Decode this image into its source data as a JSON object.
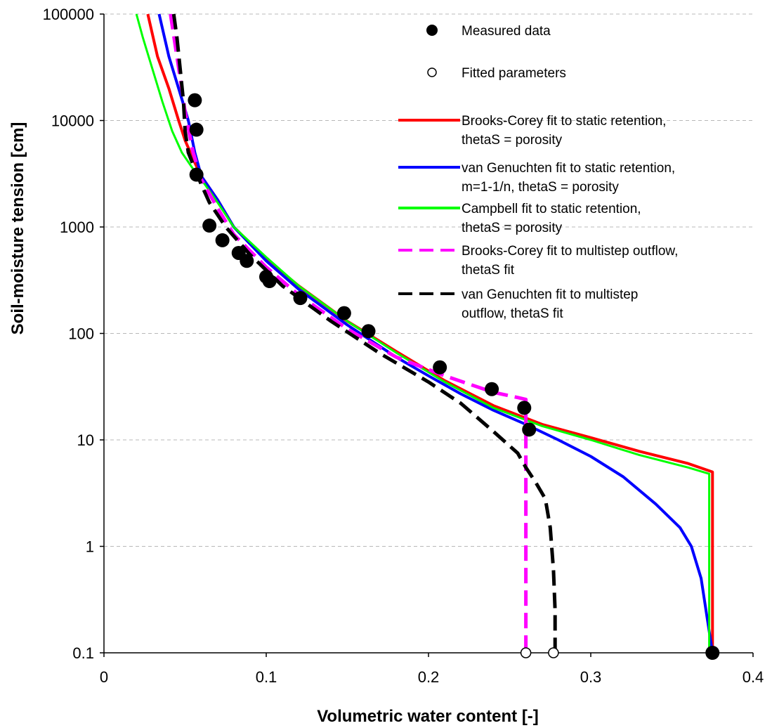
{
  "chart_data": {
    "type": "line",
    "title": "",
    "xlabel": "Volumetric water content [-]",
    "ylabel": "Soil-moisture tension [cm]",
    "xlim": [
      0,
      0.4
    ],
    "ylim": [
      0.1,
      100000
    ],
    "yscale": "log",
    "grid": "horizontal dashed",
    "legend_position": "top-right",
    "x_ticks": [
      "0",
      "0.1",
      "0.2",
      "0.3",
      "0.4"
    ],
    "y_ticks": [
      "0.1",
      "1",
      "10",
      "100",
      "1000",
      "10000",
      "100000"
    ],
    "x_tick_values": [
      0,
      0.1,
      0.2,
      0.3,
      0.4
    ],
    "y_tick_values": [
      0.1,
      1,
      10,
      100,
      1000,
      10000,
      100000
    ],
    "legend": [
      {
        "label_lines": [
          "Measured data"
        ],
        "marker": "filled-circle",
        "color": "#000000"
      },
      {
        "label_lines": [
          "Fitted parameters"
        ],
        "marker": "open-circle",
        "color": "#000000"
      },
      {
        "label_lines": [
          "Brooks-Corey fit to static retention,",
          "thetaS = porosity"
        ],
        "line": "solid",
        "color": "#ff0000"
      },
      {
        "label_lines": [
          "van Genuchten fit to static retention,",
          "m=1-1/n, thetaS = porosity"
        ],
        "line": "solid",
        "color": "#0000ff"
      },
      {
        "label_lines": [
          "Campbell fit to static retention,",
          "thetaS = porosity"
        ],
        "line": "solid",
        "color": "#00ff00"
      },
      {
        "label_lines": [
          "Brooks-Corey fit to multistep outflow,",
          "thetaS fit"
        ],
        "line": "dashed",
        "color": "#ff00ff"
      },
      {
        "label_lines": [
          "van Genuchten fit to multistep",
          "outflow, thetaS fit"
        ],
        "line": "dashed",
        "color": "#000000"
      }
    ],
    "series": [
      {
        "name": "Brooks-Corey fit to static retention, thetaS = porosity",
        "color": "#ff0000",
        "style": "solid",
        "width": 4,
        "points": [
          [
            0.027,
            100000
          ],
          [
            0.033,
            40000
          ],
          [
            0.04,
            20000
          ],
          [
            0.046,
            10000
          ],
          [
            0.05,
            6500
          ],
          [
            0.056,
            4000
          ],
          [
            0.06,
            3000
          ],
          [
            0.07,
            1800
          ],
          [
            0.08,
            1000
          ],
          [
            0.1,
            500
          ],
          [
            0.12,
            280
          ],
          [
            0.15,
            130
          ],
          [
            0.18,
            68
          ],
          [
            0.21,
            36
          ],
          [
            0.24,
            21
          ],
          [
            0.27,
            14
          ],
          [
            0.3,
            10.5
          ],
          [
            0.33,
            7.8
          ],
          [
            0.36,
            6
          ],
          [
            0.375,
            5
          ],
          [
            0.375,
            0.1
          ]
        ]
      },
      {
        "name": "van Genuchten fit to static retention, m=1-1/n, thetaS = porosity",
        "color": "#0000ff",
        "style": "solid",
        "width": 4,
        "points": [
          [
            0.034,
            100000
          ],
          [
            0.04,
            40000
          ],
          [
            0.046,
            20000
          ],
          [
            0.052,
            10000
          ],
          [
            0.056,
            5000
          ],
          [
            0.06,
            3000
          ],
          [
            0.07,
            1800
          ],
          [
            0.08,
            1000
          ],
          [
            0.1,
            480
          ],
          [
            0.12,
            260
          ],
          [
            0.15,
            120
          ],
          [
            0.18,
            60
          ],
          [
            0.2,
            40
          ],
          [
            0.22,
            27
          ],
          [
            0.24,
            19
          ],
          [
            0.26,
            14
          ],
          [
            0.28,
            10
          ],
          [
            0.3,
            7
          ],
          [
            0.32,
            4.5
          ],
          [
            0.34,
            2.5
          ],
          [
            0.355,
            1.5
          ],
          [
            0.362,
            1
          ],
          [
            0.368,
            0.5
          ],
          [
            0.372,
            0.2
          ],
          [
            0.375,
            0.1
          ]
        ]
      },
      {
        "name": "Campbell fit to static retention, thetaS = porosity",
        "color": "#00ff00",
        "style": "solid",
        "width": 3,
        "points": [
          [
            0.02,
            100000
          ],
          [
            0.024,
            60000
          ],
          [
            0.03,
            30000
          ],
          [
            0.036,
            15000
          ],
          [
            0.042,
            8000
          ],
          [
            0.048,
            5000
          ],
          [
            0.055,
            3500
          ],
          [
            0.06,
            2800
          ],
          [
            0.07,
            1700
          ],
          [
            0.08,
            1000
          ],
          [
            0.1,
            520
          ],
          [
            0.12,
            280
          ],
          [
            0.15,
            130
          ],
          [
            0.18,
            66
          ],
          [
            0.21,
            35
          ],
          [
            0.24,
            20
          ],
          [
            0.27,
            13.5
          ],
          [
            0.3,
            10
          ],
          [
            0.33,
            7.2
          ],
          [
            0.36,
            5.5
          ],
          [
            0.373,
            4.8
          ],
          [
            0.373,
            0.1
          ]
        ]
      },
      {
        "name": "Brooks-Corey fit to multistep outflow, thetaS fit",
        "color": "#ff00ff",
        "style": "dashed",
        "width": 5,
        "points": [
          [
            0.041,
            100000
          ],
          [
            0.044,
            50000
          ],
          [
            0.047,
            25000
          ],
          [
            0.05,
            12000
          ],
          [
            0.055,
            5000
          ],
          [
            0.06,
            2800
          ],
          [
            0.07,
            1500
          ],
          [
            0.08,
            850
          ],
          [
            0.1,
            420
          ],
          [
            0.12,
            230
          ],
          [
            0.15,
            110
          ],
          [
            0.18,
            60
          ],
          [
            0.21,
            40
          ],
          [
            0.24,
            28
          ],
          [
            0.255,
            25
          ],
          [
            0.26,
            24
          ],
          [
            0.26,
            0.1
          ]
        ]
      },
      {
        "name": "van Genuchten fit to multistep outflow, thetaS fit",
        "color": "#000000",
        "style": "dashed",
        "width": 5,
        "points": [
          [
            0.043,
            100000
          ],
          [
            0.045,
            60000
          ],
          [
            0.047,
            30000
          ],
          [
            0.049,
            15000
          ],
          [
            0.05,
            8000
          ],
          [
            0.052,
            5000
          ],
          [
            0.056,
            3500
          ],
          [
            0.06,
            2500
          ],
          [
            0.065,
            1700
          ],
          [
            0.075,
            1000
          ],
          [
            0.09,
            550
          ],
          [
            0.11,
            280
          ],
          [
            0.14,
            130
          ],
          [
            0.17,
            65
          ],
          [
            0.2,
            35
          ],
          [
            0.22,
            22
          ],
          [
            0.24,
            12
          ],
          [
            0.255,
            7.5
          ],
          [
            0.26,
            5.5
          ],
          [
            0.266,
            4
          ],
          [
            0.272,
            2.8
          ],
          [
            0.275,
            1.5
          ],
          [
            0.277,
            0.6
          ],
          [
            0.278,
            0.25
          ],
          [
            0.278,
            0.1
          ]
        ]
      }
    ],
    "measured_data": {
      "name": "Measured data",
      "points": [
        [
          0.056,
          15500
        ],
        [
          0.057,
          8200
        ],
        [
          0.057,
          3100
        ],
        [
          0.065,
          1030
        ],
        [
          0.073,
          750
        ],
        [
          0.083,
          570
        ],
        [
          0.088,
          480
        ],
        [
          0.1,
          340
        ],
        [
          0.102,
          310
        ],
        [
          0.121,
          215
        ],
        [
          0.148,
          155
        ],
        [
          0.163,
          105
        ],
        [
          0.207,
          48
        ],
        [
          0.239,
          30
        ],
        [
          0.259,
          20
        ],
        [
          0.262,
          12.5
        ],
        [
          0.375,
          0.1
        ]
      ]
    },
    "fitted_parameters": {
      "name": "Fitted parameters",
      "points": [
        [
          0.26,
          0.1
        ],
        [
          0.277,
          0.1
        ]
      ]
    }
  }
}
